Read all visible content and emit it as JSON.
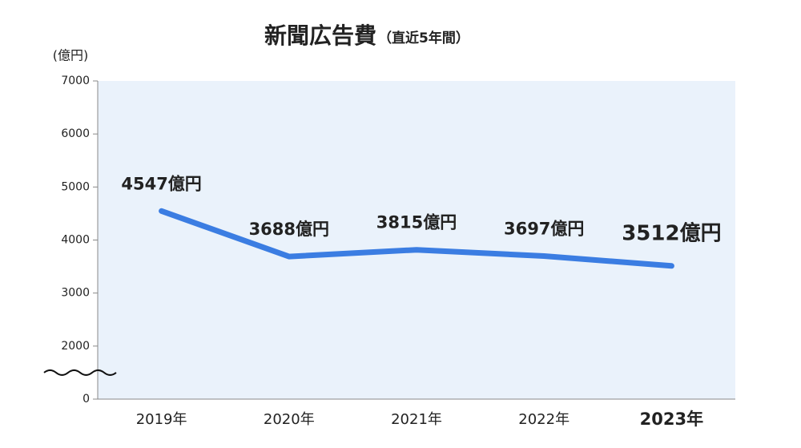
{
  "chart_data": {
    "type": "line",
    "title": "新聞広告費",
    "subtitle": "（直近5年間）",
    "y_label": "(億円)",
    "categories": [
      "2019年",
      "2020年",
      "2021年",
      "2022年",
      "2023年"
    ],
    "series": [
      {
        "name": "新聞広告費",
        "color": "#3b7de2",
        "values": [
          4547,
          3688,
          3815,
          3697,
          3512
        ],
        "value_labels": [
          "4547億円",
          "3688億円",
          "3815億円",
          "3697億円",
          "3512億円"
        ]
      }
    ],
    "label_colors": [
      "#555555",
      "#555555",
      "#555555",
      "#555555",
      "#e8173a"
    ],
    "ylim": [
      0,
      7000
    ],
    "yticks": [
      0,
      2000,
      3000,
      4000,
      5000,
      6000,
      7000
    ],
    "axis_break": [
      0,
      2000
    ],
    "grid": false,
    "background": "#eaf2fb"
  }
}
